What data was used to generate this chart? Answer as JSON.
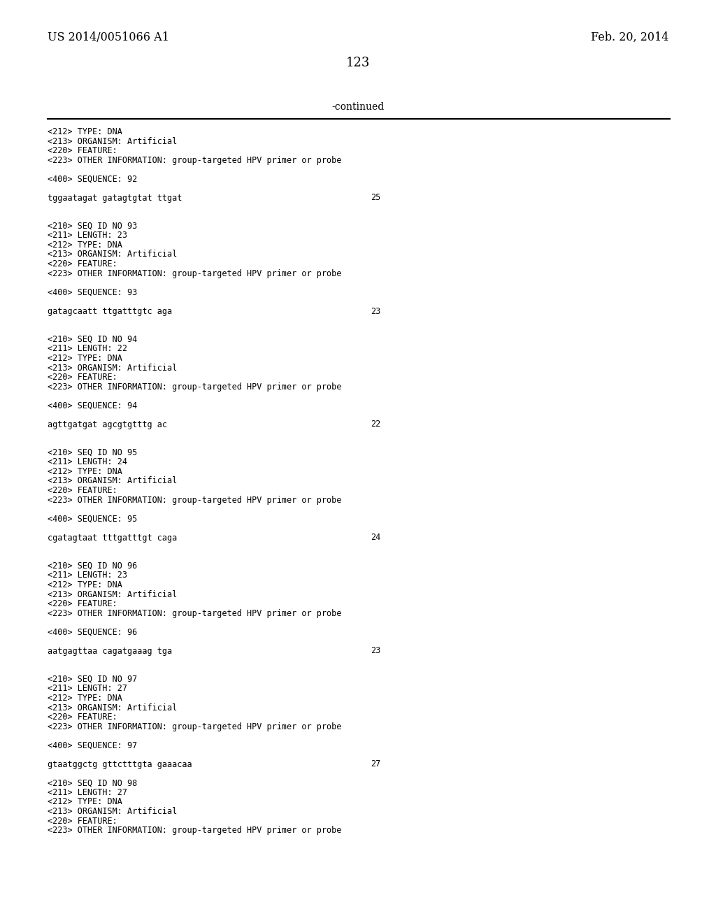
{
  "background_color": "#ffffff",
  "header_left": "US 2014/0051066 A1",
  "header_right": "Feb. 20, 2014",
  "page_number": "123",
  "continued_text": "-continued",
  "text_color": "#000000",
  "line_color": "#000000",
  "header_font_size": 11.5,
  "page_num_font_size": 13,
  "continued_font_size": 10,
  "body_font_size": 8.5,
  "content": [
    {
      "type": "text",
      "text": "<212> TYPE: DNA",
      "col": "left"
    },
    {
      "type": "text",
      "text": "<213> ORGANISM: Artificial",
      "col": "left"
    },
    {
      "type": "text",
      "text": "<220> FEATURE:",
      "col": "left"
    },
    {
      "type": "text",
      "text": "<223> OTHER INFORMATION: group-targeted HPV primer or probe",
      "col": "left"
    },
    {
      "type": "blank"
    },
    {
      "type": "text",
      "text": "<400> SEQUENCE: 92",
      "col": "left"
    },
    {
      "type": "blank"
    },
    {
      "type": "seq",
      "text": "tggaatagat gatagtgtat ttgat",
      "num": "25"
    },
    {
      "type": "blank"
    },
    {
      "type": "blank"
    },
    {
      "type": "text",
      "text": "<210> SEQ ID NO 93",
      "col": "left"
    },
    {
      "type": "text",
      "text": "<211> LENGTH: 23",
      "col": "left"
    },
    {
      "type": "text",
      "text": "<212> TYPE: DNA",
      "col": "left"
    },
    {
      "type": "text",
      "text": "<213> ORGANISM: Artificial",
      "col": "left"
    },
    {
      "type": "text",
      "text": "<220> FEATURE:",
      "col": "left"
    },
    {
      "type": "text",
      "text": "<223> OTHER INFORMATION: group-targeted HPV primer or probe",
      "col": "left"
    },
    {
      "type": "blank"
    },
    {
      "type": "text",
      "text": "<400> SEQUENCE: 93",
      "col": "left"
    },
    {
      "type": "blank"
    },
    {
      "type": "seq",
      "text": "gatagcaatt ttgatttgtc aga",
      "num": "23"
    },
    {
      "type": "blank"
    },
    {
      "type": "blank"
    },
    {
      "type": "text",
      "text": "<210> SEQ ID NO 94",
      "col": "left"
    },
    {
      "type": "text",
      "text": "<211> LENGTH: 22",
      "col": "left"
    },
    {
      "type": "text",
      "text": "<212> TYPE: DNA",
      "col": "left"
    },
    {
      "type": "text",
      "text": "<213> ORGANISM: Artificial",
      "col": "left"
    },
    {
      "type": "text",
      "text": "<220> FEATURE:",
      "col": "left"
    },
    {
      "type": "text",
      "text": "<223> OTHER INFORMATION: group-targeted HPV primer or probe",
      "col": "left"
    },
    {
      "type": "blank"
    },
    {
      "type": "text",
      "text": "<400> SEQUENCE: 94",
      "col": "left"
    },
    {
      "type": "blank"
    },
    {
      "type": "seq",
      "text": "agttgatgat agcgtgtttg ac",
      "num": "22"
    },
    {
      "type": "blank"
    },
    {
      "type": "blank"
    },
    {
      "type": "text",
      "text": "<210> SEQ ID NO 95",
      "col": "left"
    },
    {
      "type": "text",
      "text": "<211> LENGTH: 24",
      "col": "left"
    },
    {
      "type": "text",
      "text": "<212> TYPE: DNA",
      "col": "left"
    },
    {
      "type": "text",
      "text": "<213> ORGANISM: Artificial",
      "col": "left"
    },
    {
      "type": "text",
      "text": "<220> FEATURE:",
      "col": "left"
    },
    {
      "type": "text",
      "text": "<223> OTHER INFORMATION: group-targeted HPV primer or probe",
      "col": "left"
    },
    {
      "type": "blank"
    },
    {
      "type": "text",
      "text": "<400> SEQUENCE: 95",
      "col": "left"
    },
    {
      "type": "blank"
    },
    {
      "type": "seq",
      "text": "cgatagtaat tttgatttgt caga",
      "num": "24"
    },
    {
      "type": "blank"
    },
    {
      "type": "blank"
    },
    {
      "type": "text",
      "text": "<210> SEQ ID NO 96",
      "col": "left"
    },
    {
      "type": "text",
      "text": "<211> LENGTH: 23",
      "col": "left"
    },
    {
      "type": "text",
      "text": "<212> TYPE: DNA",
      "col": "left"
    },
    {
      "type": "text",
      "text": "<213> ORGANISM: Artificial",
      "col": "left"
    },
    {
      "type": "text",
      "text": "<220> FEATURE:",
      "col": "left"
    },
    {
      "type": "text",
      "text": "<223> OTHER INFORMATION: group-targeted HPV primer or probe",
      "col": "left"
    },
    {
      "type": "blank"
    },
    {
      "type": "text",
      "text": "<400> SEQUENCE: 96",
      "col": "left"
    },
    {
      "type": "blank"
    },
    {
      "type": "seq",
      "text": "aatgagttaa cagatgaaag tga",
      "num": "23"
    },
    {
      "type": "blank"
    },
    {
      "type": "blank"
    },
    {
      "type": "text",
      "text": "<210> SEQ ID NO 97",
      "col": "left"
    },
    {
      "type": "text",
      "text": "<211> LENGTH: 27",
      "col": "left"
    },
    {
      "type": "text",
      "text": "<212> TYPE: DNA",
      "col": "left"
    },
    {
      "type": "text",
      "text": "<213> ORGANISM: Artificial",
      "col": "left"
    },
    {
      "type": "text",
      "text": "<220> FEATURE:",
      "col": "left"
    },
    {
      "type": "text",
      "text": "<223> OTHER INFORMATION: group-targeted HPV primer or probe",
      "col": "left"
    },
    {
      "type": "blank"
    },
    {
      "type": "text",
      "text": "<400> SEQUENCE: 97",
      "col": "left"
    },
    {
      "type": "blank"
    },
    {
      "type": "seq",
      "text": "gtaatggctg gttctttgta gaaacaa",
      "num": "27"
    },
    {
      "type": "blank"
    },
    {
      "type": "text",
      "text": "<210> SEQ ID NO 98",
      "col": "left"
    },
    {
      "type": "text",
      "text": "<211> LENGTH: 27",
      "col": "left"
    },
    {
      "type": "text",
      "text": "<212> TYPE: DNA",
      "col": "left"
    },
    {
      "type": "text",
      "text": "<213> ORGANISM: Artificial",
      "col": "left"
    },
    {
      "type": "text",
      "text": "<220> FEATURE:",
      "col": "left"
    },
    {
      "type": "text",
      "text": "<223> OTHER INFORMATION: group-targeted HPV primer or probe",
      "col": "left"
    }
  ]
}
